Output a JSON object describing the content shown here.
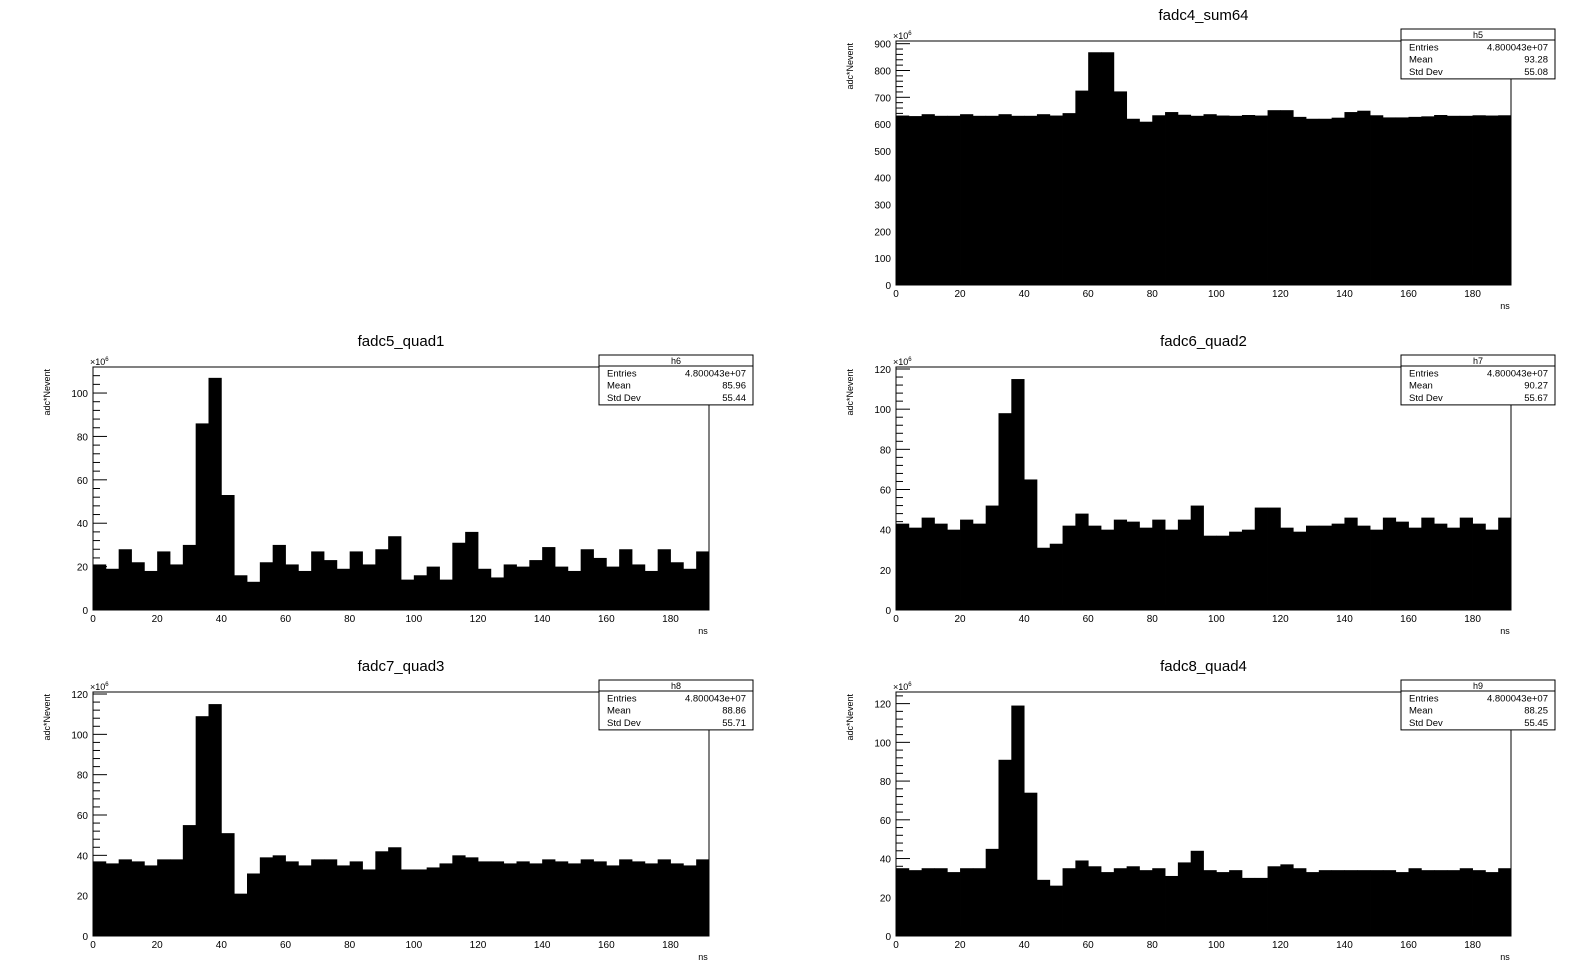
{
  "chart_data": [
    {
      "type": "bar",
      "title": "fadc4_sum64",
      "xlabel": "ns",
      "ylabel": "adc*Nevent",
      "yexponent": "×10",
      "yexponent_power": "6",
      "xlim": [
        0,
        192
      ],
      "ylim": [
        0,
        910
      ],
      "bin_width": 4,
      "xticks": [
        0,
        20,
        40,
        60,
        80,
        100,
        120,
        140,
        160,
        180
      ],
      "yticks": [
        0,
        100,
        200,
        300,
        400,
        500,
        600,
        700,
        800,
        900
      ],
      "values": [
        632,
        630,
        637,
        631,
        631,
        637,
        631,
        631,
        637,
        631,
        631,
        637,
        632,
        641,
        725,
        868,
        868,
        722,
        620,
        609,
        633,
        645,
        635,
        631,
        637,
        632,
        631,
        634,
        632,
        652,
        652,
        627,
        620,
        620,
        624,
        645,
        650,
        633,
        625,
        625,
        627,
        629,
        634,
        631,
        631,
        633,
        632,
        633
      ],
      "stats": {
        "name": "h5",
        "rows": [
          {
            "label": "Entries",
            "value": "4.800043e+07"
          },
          {
            "label": "Mean",
            "value": "93.28"
          },
          {
            "label": "Std Dev",
            "value": "55.08"
          }
        ]
      },
      "legend_position": "top-right"
    },
    {
      "type": "bar",
      "title": "fadc5_quad1",
      "xlabel": "ns",
      "ylabel": "adc*Nevent",
      "yexponent": "×10",
      "yexponent_power": "6",
      "xlim": [
        0,
        192
      ],
      "ylim": [
        0,
        112
      ],
      "bin_width": 4,
      "xticks": [
        0,
        20,
        40,
        60,
        80,
        100,
        120,
        140,
        160,
        180
      ],
      "yticks": [
        0,
        20,
        40,
        60,
        80,
        100
      ],
      "values": [
        21,
        19,
        28,
        22,
        18,
        27,
        21,
        30,
        86,
        107,
        53,
        16,
        13,
        22,
        30,
        21,
        18,
        27,
        23,
        19,
        27,
        21,
        28,
        34,
        14,
        16,
        20,
        14,
        31,
        36,
        19,
        15,
        21,
        20,
        23,
        29,
        20,
        18,
        28,
        24,
        20,
        28,
        21,
        18,
        28,
        22,
        19,
        27
      ],
      "stats": {
        "name": "h6",
        "rows": [
          {
            "label": "Entries",
            "value": "4.800043e+07"
          },
          {
            "label": "Mean",
            "value": "85.96"
          },
          {
            "label": "Std Dev",
            "value": "55.44"
          }
        ]
      },
      "legend_position": "top-right"
    },
    {
      "type": "bar",
      "title": "fadc6_quad2",
      "xlabel": "ns",
      "ylabel": "adc*Nevent",
      "yexponent": "×10",
      "yexponent_power": "6",
      "xlim": [
        0,
        192
      ],
      "ylim": [
        0,
        121
      ],
      "bin_width": 4,
      "xticks": [
        0,
        20,
        40,
        60,
        80,
        100,
        120,
        140,
        160,
        180
      ],
      "yticks": [
        0,
        20,
        40,
        60,
        80,
        100,
        120
      ],
      "values": [
        43,
        41,
        46,
        43,
        40,
        45,
        43,
        52,
        98,
        115,
        65,
        31,
        33,
        42,
        48,
        42,
        40,
        45,
        44,
        41,
        45,
        40,
        45,
        52,
        37,
        37,
        39,
        40,
        51,
        51,
        41,
        39,
        42,
        42,
        43,
        46,
        42,
        40,
        46,
        44,
        41,
        46,
        43,
        41,
        46,
        43,
        40,
        46
      ],
      "stats": {
        "name": "h7",
        "rows": [
          {
            "label": "Entries",
            "value": "4.800043e+07"
          },
          {
            "label": "Mean",
            "value": "90.27"
          },
          {
            "label": "Std Dev",
            "value": "55.67"
          }
        ]
      },
      "legend_position": "top-right"
    },
    {
      "type": "bar",
      "title": "fadc7_quad3",
      "xlabel": "ns",
      "ylabel": "adc*Nevent",
      "yexponent": "×10",
      "yexponent_power": "6",
      "xlim": [
        0,
        192
      ],
      "ylim": [
        0,
        121
      ],
      "bin_width": 4,
      "xticks": [
        0,
        20,
        40,
        60,
        80,
        100,
        120,
        140,
        160,
        180
      ],
      "yticks": [
        0,
        20,
        40,
        60,
        80,
        100,
        120
      ],
      "values": [
        37,
        36,
        38,
        37,
        35,
        38,
        38,
        55,
        109,
        115,
        51,
        21,
        31,
        39,
        40,
        37,
        35,
        38,
        38,
        35,
        37,
        33,
        42,
        44,
        33,
        33,
        34,
        36,
        40,
        39,
        37,
        37,
        36,
        37,
        36,
        38,
        37,
        36,
        38,
        37,
        35,
        38,
        37,
        36,
        38,
        36,
        35,
        38
      ],
      "stats": {
        "name": "h8",
        "rows": [
          {
            "label": "Entries",
            "value": "4.800043e+07"
          },
          {
            "label": "Mean",
            "value": "88.86"
          },
          {
            "label": "Std Dev",
            "value": "55.71"
          }
        ]
      },
      "legend_position": "top-right"
    },
    {
      "type": "bar",
      "title": "fadc8_quad4",
      "xlabel": "ns",
      "ylabel": "adc*Nevent",
      "yexponent": "×10",
      "yexponent_power": "6",
      "xlim": [
        0,
        192
      ],
      "ylim": [
        0,
        126
      ],
      "bin_width": 4,
      "xticks": [
        0,
        20,
        40,
        60,
        80,
        100,
        120,
        140,
        160,
        180
      ],
      "yticks": [
        0,
        20,
        40,
        60,
        80,
        100,
        120
      ],
      "values": [
        35,
        34,
        35,
        35,
        33,
        35,
        35,
        45,
        91,
        119,
        74,
        29,
        26,
        35,
        39,
        36,
        33,
        35,
        36,
        34,
        35,
        31,
        38,
        44,
        34,
        33,
        34,
        30,
        30,
        36,
        37,
        35,
        33,
        34,
        34,
        34,
        34,
        34,
        34,
        33,
        35,
        34,
        34,
        34,
        35,
        34,
        33,
        35
      ],
      "stats": {
        "name": "h9",
        "rows": [
          {
            "label": "Entries",
            "value": "4.800043e+07"
          },
          {
            "label": "Mean",
            "value": "88.25"
          },
          {
            "label": "Std Dev",
            "value": "55.45"
          }
        ]
      },
      "legend_position": "top-right"
    }
  ]
}
